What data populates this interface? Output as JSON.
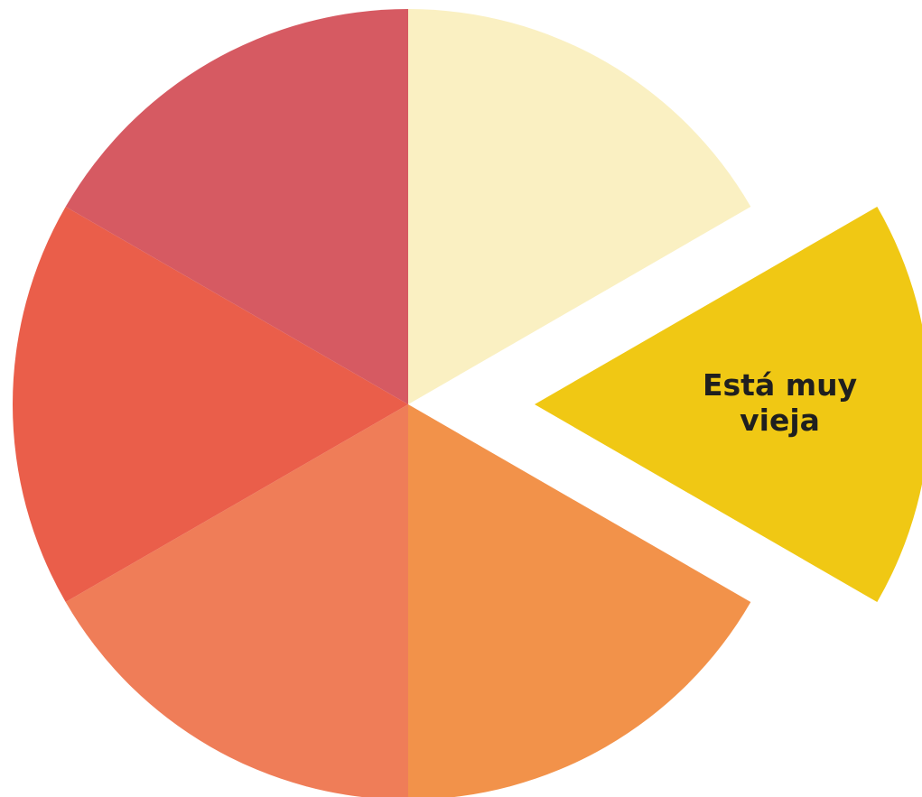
{
  "chart_data": {
    "type": "pie",
    "title": "",
    "start_angle_deg": -30,
    "exploded_index": 0,
    "slices": [
      {
        "value": 1,
        "color": "#F0C814",
        "labels": [
          "Está muy",
          "vieja"
        ]
      },
      {
        "value": 1,
        "color": "#F2924A",
        "labels": []
      },
      {
        "value": 1,
        "color": "#EF7D58",
        "labels": []
      },
      {
        "value": 1,
        "color": "#EA5E4A",
        "labels": []
      },
      {
        "value": 1,
        "color": "#D65A62",
        "labels": []
      },
      {
        "value": 1,
        "color": "#FAF0C2",
        "labels": []
      }
    ]
  }
}
